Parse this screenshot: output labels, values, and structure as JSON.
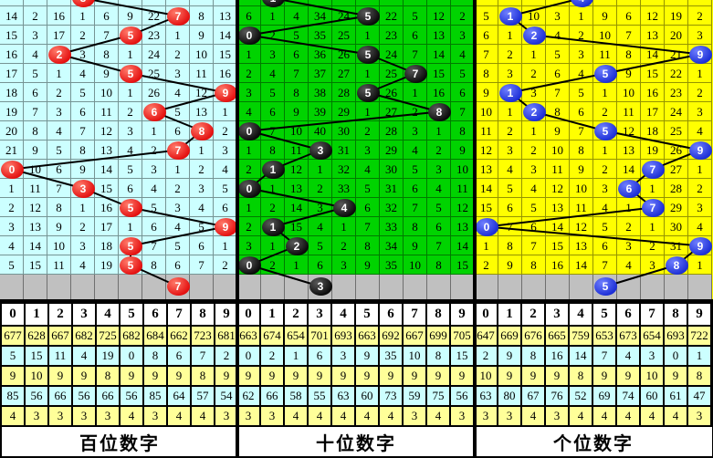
{
  "digits": [
    "0",
    "1",
    "2",
    "3",
    "4",
    "5",
    "6",
    "7",
    "8",
    "9"
  ],
  "colors": {
    "gray_row": "#C0C0C0",
    "stat_row_yellow": "#FFFF99",
    "stat_row_cyan": "#CCFFFF",
    "header_bg": "#FFFFFF",
    "line": "#000000",
    "separator": "#000000"
  },
  "panels": [
    {
      "id": "hundreds",
      "title": "百位数字",
      "bg": "#CCFFFF",
      "ball_color": "#E41010",
      "ball_highlight": "#FF7A6A",
      "partial_ball_col": 3,
      "ball_cols": [
        7,
        5,
        2,
        5,
        9,
        6,
        8,
        7,
        0,
        3,
        5,
        9,
        5,
        5
      ],
      "tail_ball_col": 7,
      "rows": [
        [
          14,
          2,
          16,
          1,
          6,
          9,
          22,
          null,
          8,
          13
        ],
        [
          15,
          3,
          17,
          2,
          7,
          null,
          23,
          1,
          9,
          14
        ],
        [
          16,
          4,
          null,
          3,
          8,
          1,
          24,
          2,
          10,
          15
        ],
        [
          17,
          5,
          1,
          4,
          9,
          null,
          25,
          3,
          11,
          16
        ],
        [
          18,
          6,
          2,
          5,
          10,
          1,
          26,
          4,
          12,
          null
        ],
        [
          19,
          7,
          3,
          6,
          11,
          2,
          null,
          5,
          13,
          1
        ],
        [
          20,
          8,
          4,
          7,
          12,
          3,
          1,
          6,
          null,
          2
        ],
        [
          21,
          9,
          5,
          8,
          13,
          4,
          2,
          null,
          1,
          3
        ],
        [
          null,
          10,
          6,
          9,
          14,
          5,
          3,
          1,
          2,
          4
        ],
        [
          1,
          11,
          7,
          null,
          15,
          6,
          4,
          2,
          3,
          5
        ],
        [
          2,
          12,
          8,
          1,
          16,
          null,
          5,
          3,
          4,
          6
        ],
        [
          3,
          13,
          9,
          2,
          17,
          1,
          6,
          4,
          5,
          null
        ],
        [
          4,
          14,
          10,
          3,
          18,
          null,
          7,
          5,
          6,
          1
        ],
        [
          5,
          15,
          11,
          4,
          19,
          null,
          8,
          6,
          7,
          2
        ]
      ],
      "stats": [
        [
          677,
          628,
          667,
          682,
          725,
          682,
          684,
          662,
          723,
          681
        ],
        [
          5,
          15,
          11,
          4,
          19,
          0,
          8,
          6,
          7,
          2
        ],
        [
          9,
          10,
          9,
          9,
          8,
          9,
          9,
          9,
          8,
          9
        ],
        [
          85,
          56,
          66,
          56,
          66,
          56,
          85,
          64,
          57,
          54
        ],
        [
          4,
          3,
          3,
          3,
          3,
          4,
          3,
          4,
          4,
          3
        ]
      ]
    },
    {
      "id": "tens",
      "title": "十位数字",
      "bg": "#00D300",
      "ball_color": "#0A0A0A",
      "ball_highlight": "#5A5A5A",
      "partial_ball_col": 1,
      "ball_cols": [
        5,
        0,
        5,
        7,
        5,
        8,
        0,
        3,
        1,
        0,
        4,
        1,
        2,
        0
      ],
      "tail_ball_col": 3,
      "rows": [
        [
          6,
          1,
          4,
          34,
          24,
          null,
          22,
          5,
          12,
          2
        ],
        [
          null,
          2,
          5,
          35,
          25,
          1,
          23,
          6,
          13,
          3
        ],
        [
          1,
          3,
          6,
          36,
          26,
          null,
          24,
          7,
          14,
          4
        ],
        [
          2,
          4,
          7,
          37,
          27,
          1,
          25,
          null,
          15,
          5
        ],
        [
          3,
          5,
          8,
          38,
          28,
          null,
          26,
          1,
          16,
          6
        ],
        [
          4,
          6,
          9,
          39,
          29,
          1,
          27,
          2,
          null,
          7
        ],
        [
          null,
          7,
          10,
          40,
          30,
          2,
          28,
          3,
          1,
          8
        ],
        [
          1,
          8,
          11,
          null,
          31,
          3,
          29,
          4,
          2,
          9
        ],
        [
          2,
          null,
          12,
          1,
          32,
          4,
          30,
          5,
          3,
          10
        ],
        [
          null,
          1,
          13,
          2,
          33,
          5,
          31,
          6,
          4,
          11
        ],
        [
          1,
          2,
          14,
          3,
          null,
          6,
          32,
          7,
          5,
          12
        ],
        [
          2,
          null,
          15,
          4,
          1,
          7,
          33,
          8,
          6,
          13
        ],
        [
          3,
          1,
          null,
          5,
          2,
          8,
          34,
          9,
          7,
          14
        ],
        [
          null,
          2,
          1,
          6,
          3,
          9,
          35,
          10,
          8,
          15
        ]
      ],
      "stats": [
        [
          663,
          674,
          654,
          701,
          693,
          663,
          692,
          667,
          699,
          705
        ],
        [
          0,
          2,
          1,
          6,
          3,
          9,
          35,
          10,
          8,
          15
        ],
        [
          9,
          9,
          9,
          9,
          9,
          9,
          9,
          9,
          9,
          9
        ],
        [
          62,
          66,
          58,
          55,
          63,
          60,
          73,
          59,
          75,
          56
        ],
        [
          3,
          3,
          4,
          4,
          4,
          4,
          4,
          3,
          4,
          3
        ]
      ]
    },
    {
      "id": "units",
      "title": "个位数字",
      "bg": "#FFFF00",
      "ball_color": "#1D2FD6",
      "ball_highlight": "#7080FF",
      "partial_ball_col": 4,
      "ball_cols": [
        1,
        2,
        9,
        5,
        1,
        2,
        5,
        9,
        7,
        6,
        7,
        0,
        9,
        8
      ],
      "tail_ball_col": 5,
      "rows": [
        [
          5,
          null,
          10,
          3,
          1,
          9,
          6,
          12,
          19,
          2
        ],
        [
          6,
          1,
          null,
          4,
          2,
          10,
          7,
          13,
          20,
          3
        ],
        [
          7,
          2,
          1,
          5,
          3,
          11,
          8,
          14,
          21,
          null
        ],
        [
          8,
          3,
          2,
          6,
          4,
          null,
          9,
          15,
          22,
          1
        ],
        [
          9,
          null,
          3,
          7,
          5,
          1,
          10,
          16,
          23,
          2
        ],
        [
          10,
          1,
          null,
          8,
          6,
          2,
          11,
          17,
          24,
          3
        ],
        [
          11,
          2,
          1,
          9,
          7,
          null,
          12,
          18,
          25,
          4
        ],
        [
          12,
          3,
          2,
          10,
          8,
          1,
          13,
          19,
          26,
          null
        ],
        [
          13,
          4,
          3,
          11,
          9,
          2,
          14,
          null,
          27,
          1
        ],
        [
          14,
          5,
          4,
          12,
          10,
          3,
          null,
          1,
          28,
          2
        ],
        [
          15,
          6,
          5,
          13,
          11,
          4,
          1,
          null,
          29,
          3
        ],
        [
          null,
          7,
          6,
          14,
          12,
          5,
          2,
          1,
          30,
          4
        ],
        [
          1,
          8,
          7,
          15,
          13,
          6,
          3,
          2,
          31,
          null
        ],
        [
          2,
          9,
          8,
          16,
          14,
          7,
          4,
          3,
          null,
          1
        ]
      ],
      "stats": [
        [
          647,
          669,
          676,
          665,
          759,
          653,
          673,
          654,
          693,
          722
        ],
        [
          2,
          9,
          8,
          16,
          14,
          7,
          4,
          3,
          0,
          1
        ],
        [
          10,
          9,
          9,
          9,
          8,
          9,
          9,
          10,
          9,
          8
        ],
        [
          63,
          80,
          67,
          76,
          52,
          69,
          74,
          60,
          61,
          47
        ],
        [
          3,
          3,
          4,
          3,
          4,
          4,
          4,
          4,
          4,
          3
        ]
      ]
    }
  ],
  "chart_data": {
    "type": "table",
    "title": "",
    "panel_titles": [
      "百位数字",
      "十位数字",
      "个位数字"
    ],
    "column_digits": [
      0,
      1,
      2,
      3,
      4,
      5,
      6,
      7,
      8,
      9
    ],
    "drawn_digit_sequences_top_to_bottom": {
      "百位数字": [
        3,
        7,
        5,
        2,
        5,
        9,
        6,
        8,
        7,
        0,
        3,
        5,
        9,
        5,
        5
      ],
      "十位数字": [
        1,
        5,
        0,
        5,
        7,
        5,
        8,
        0,
        3,
        1,
        0,
        4,
        1,
        2,
        0
      ],
      "个位数字": [
        4,
        1,
        2,
        9,
        5,
        1,
        2,
        5,
        9,
        7,
        6,
        7,
        0,
        9,
        8
      ]
    },
    "gray_row_balls": {
      "百位数字": 7,
      "十位数字": 3,
      "个位数字": 5
    },
    "stats_rows": {
      "百位数字": [
        [
          677,
          628,
          667,
          682,
          725,
          682,
          684,
          662,
          723,
          681
        ],
        [
          5,
          15,
          11,
          4,
          19,
          0,
          8,
          6,
          7,
          2
        ],
        [
          9,
          10,
          9,
          9,
          8,
          9,
          9,
          9,
          8,
          9
        ],
        [
          85,
          56,
          66,
          56,
          66,
          56,
          85,
          64,
          57,
          54
        ],
        [
          4,
          3,
          3,
          3,
          3,
          4,
          3,
          4,
          4,
          3
        ]
      ],
      "十位数字": [
        [
          663,
          674,
          654,
          701,
          693,
          663,
          692,
          667,
          699,
          705
        ],
        [
          0,
          2,
          1,
          6,
          3,
          9,
          35,
          10,
          8,
          15
        ],
        [
          9,
          9,
          9,
          9,
          9,
          9,
          9,
          9,
          9,
          9
        ],
        [
          62,
          66,
          58,
          55,
          63,
          60,
          73,
          59,
          75,
          56
        ],
        [
          3,
          3,
          4,
          4,
          4,
          4,
          4,
          3,
          4,
          3
        ]
      ],
      "个位数字": [
        [
          647,
          669,
          676,
          665,
          759,
          653,
          673,
          654,
          693,
          722
        ],
        [
          2,
          9,
          8,
          16,
          14,
          7,
          4,
          3,
          0,
          1
        ],
        [
          10,
          9,
          9,
          9,
          8,
          9,
          9,
          10,
          9,
          8
        ],
        [
          63,
          80,
          67,
          76,
          52,
          69,
          74,
          60,
          61,
          47
        ],
        [
          3,
          3,
          4,
          3,
          4,
          4,
          4,
          4,
          4,
          3
        ]
      ]
    },
    "layout": "three side-by-side miss/trend grids, 10 digit columns each, 14 visible draw rows plus clipped top row and gray prediction row; drawn digits marked as colored balls connected by black polyline"
  }
}
